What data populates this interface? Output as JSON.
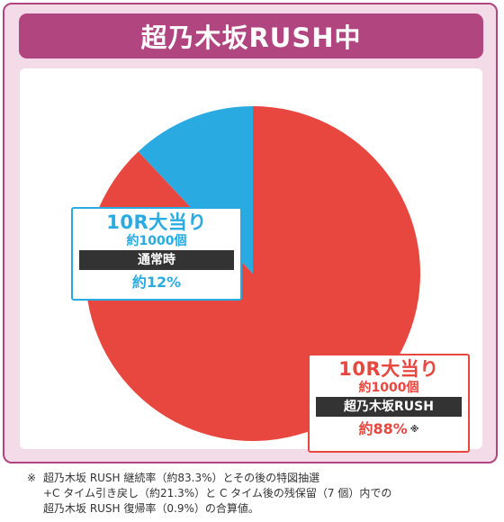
{
  "header": {
    "title": "超乃木坂RUSH中"
  },
  "colors": {
    "frame": "#b0457f",
    "frame_bg": "#f3dbe7",
    "large_slice": "#e8473f",
    "small_slice": "#29abe2"
  },
  "chart_data": {
    "type": "pie",
    "title": "超乃木坂RUSH中",
    "slices": [
      {
        "title": "10R大当り",
        "count": "約1000個",
        "status": "超乃木坂RUSH",
        "percent": "約88%",
        "value": 88,
        "color": "#e8473f"
      },
      {
        "title": "10R大当り",
        "count": "約1000個",
        "status": "通常時",
        "percent": "約12%",
        "value": 12,
        "color": "#29abe2"
      }
    ],
    "note_mark": "※"
  },
  "footnote": {
    "mark": "※",
    "lines": [
      "超乃木坂 RUSH 継続率（約83.3%）とその後の特図抽選",
      "+C タイム引き戻し（約21.3%）と C タイム後の残保留（7 個）内での",
      "超乃木坂 RUSH 復帰率（0.9%）の合算値。"
    ]
  }
}
